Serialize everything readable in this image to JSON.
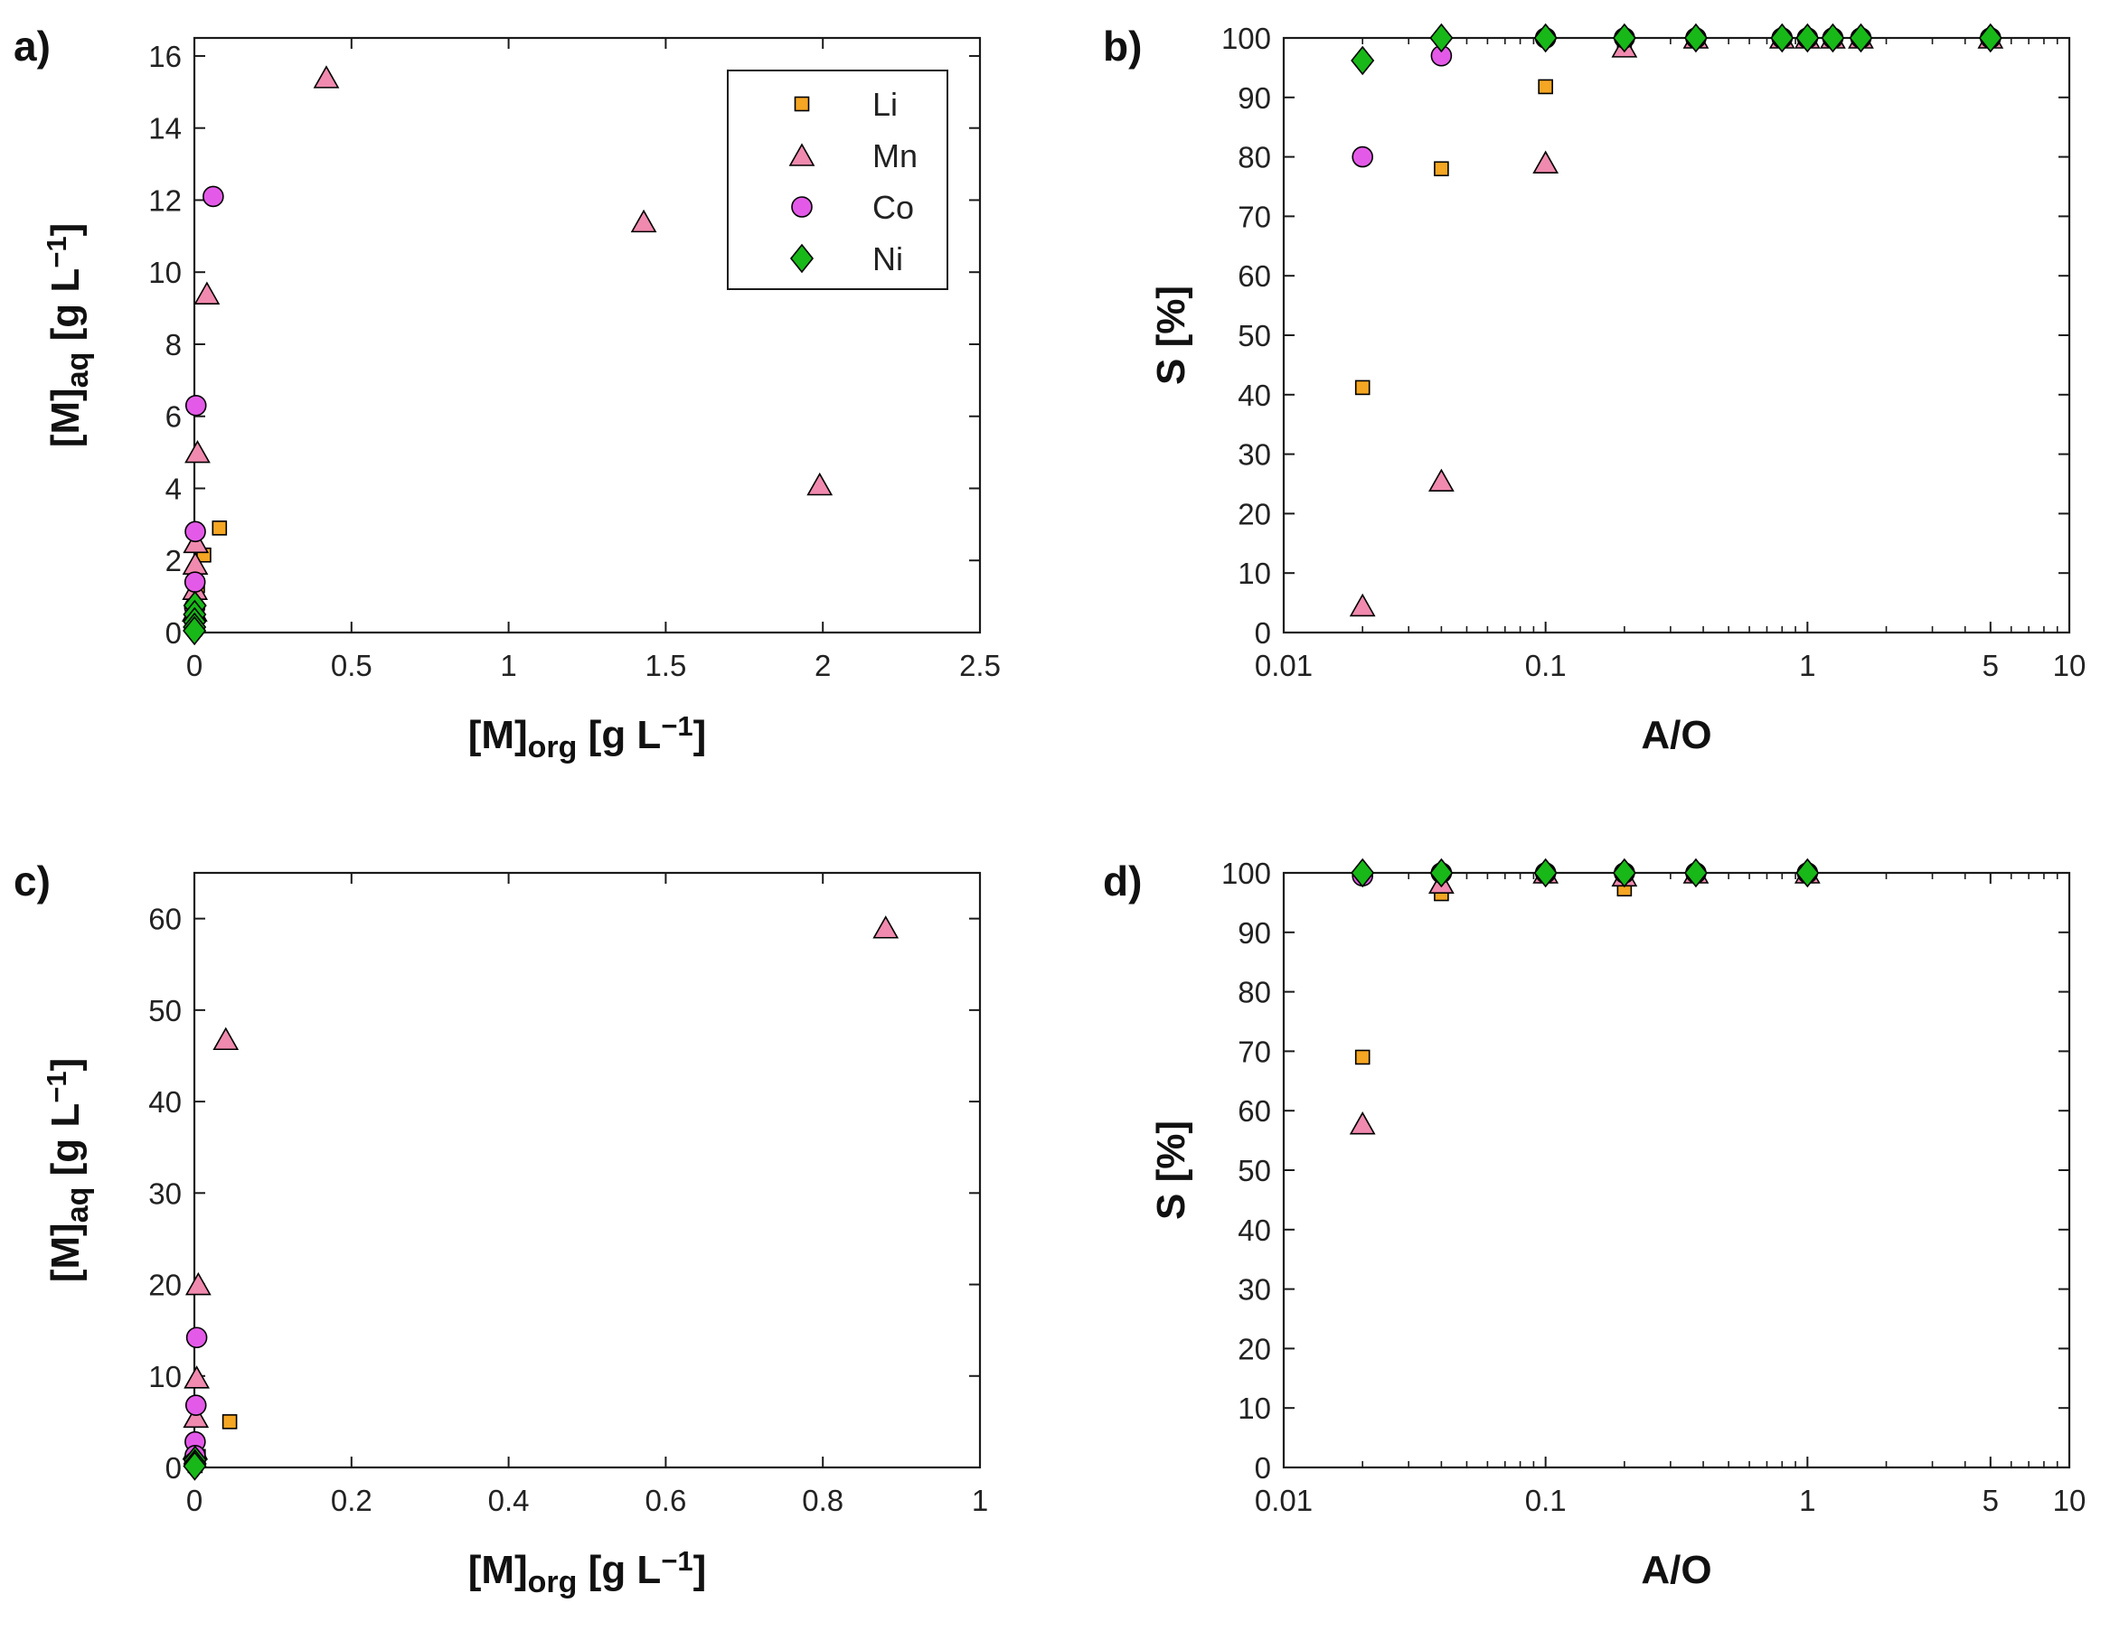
{
  "colors": {
    "Li": "#F5A623",
    "Mn": "#F08AAE",
    "Co": "#E45AE8",
    "Ni": "#18B818",
    "axis": "#1a1a1a"
  },
  "legend": [
    "Li",
    "Mn",
    "Co",
    "Ni"
  ],
  "chart_data": [
    {
      "id": "a",
      "panel_label": "a)",
      "type": "scatter",
      "xlabel": {
        "base": "[M]",
        "sub": "org",
        "unit_pre": " [g L",
        "sup": "−1",
        "unit_post": "]"
      },
      "ylabel": {
        "base": "[M]",
        "sub": "aq",
        "unit_pre": " [g L",
        "sup": "−1",
        "unit_post": "]"
      },
      "xscale": "linear",
      "xlim": [
        0,
        2.5
      ],
      "ylim": [
        0,
        16.5
      ],
      "xticks": [
        0,
        0.5,
        1,
        1.5,
        2,
        2.5
      ],
      "xtick_labels": [
        "0",
        "0.5",
        "1",
        "1.5",
        "2",
        "2.5"
      ],
      "yticks": [
        0,
        2,
        4,
        6,
        8,
        10,
        12,
        14,
        16
      ],
      "ytick_labels": [
        "0",
        "2",
        "4",
        "6",
        "8",
        "10",
        "12",
        "14",
        "16"
      ],
      "legend_position": "top-right",
      "series": [
        {
          "name": "Li",
          "marker": "square",
          "points": [
            [
              0.08,
              2.9
            ],
            [
              0.03,
              2.15
            ],
            [
              0.01,
              1.3
            ],
            [
              0.005,
              0.6
            ],
            [
              0.002,
              0.3
            ],
            [
              0.001,
              0.1
            ]
          ]
        },
        {
          "name": "Mn",
          "marker": "triangle",
          "points": [
            [
              0.42,
              15.4
            ],
            [
              1.43,
              11.4
            ],
            [
              1.99,
              4.1
            ],
            [
              0.04,
              9.4
            ],
            [
              0.01,
              5.0
            ],
            [
              0.005,
              2.5
            ],
            [
              0.003,
              1.9
            ],
            [
              0.002,
              1.2
            ],
            [
              0.001,
              0.6
            ]
          ]
        },
        {
          "name": "Co",
          "marker": "circle",
          "points": [
            [
              0.06,
              12.1
            ],
            [
              0.005,
              6.3
            ],
            [
              0.003,
              2.8
            ],
            [
              0.002,
              1.4
            ],
            [
              0.001,
              0.7
            ],
            [
              0.0005,
              0.35
            ]
          ]
        },
        {
          "name": "Ni",
          "marker": "diamond",
          "points": [
            [
              0.002,
              0.75
            ],
            [
              0.001,
              0.5
            ],
            [
              0.0008,
              0.3
            ],
            [
              0.0005,
              0.15
            ],
            [
              0.0003,
              0.05
            ]
          ]
        }
      ]
    },
    {
      "id": "b",
      "panel_label": "b)",
      "type": "scatter",
      "xlabel": {
        "base": "A/O"
      },
      "ylabel": {
        "base": "S [%]"
      },
      "xscale": "log",
      "xlim": [
        0.01,
        10
      ],
      "ylim": [
        0,
        100
      ],
      "xticks": [
        0.01,
        0.1,
        1,
        5,
        10
      ],
      "xtick_labels": [
        "0.01",
        "0.1",
        "1",
        "5",
        "10"
      ],
      "yticks": [
        0,
        10,
        20,
        30,
        40,
        50,
        60,
        70,
        80,
        90,
        100
      ],
      "ytick_labels": [
        "0",
        "10",
        "20",
        "30",
        "40",
        "50",
        "60",
        "70",
        "80",
        "90",
        "100"
      ],
      "series": [
        {
          "name": "Li",
          "marker": "square",
          "points": [
            [
              0.02,
              41.2
            ],
            [
              0.04,
              78.0
            ],
            [
              0.1,
              91.8
            ],
            [
              0.2,
              99.0
            ],
            [
              0.375,
              100
            ],
            [
              0.8,
              100
            ],
            [
              1,
              100
            ],
            [
              1.25,
              100
            ],
            [
              1.6,
              100
            ],
            [
              5,
              100
            ]
          ]
        },
        {
          "name": "Mn",
          "marker": "triangle",
          "points": [
            [
              0.02,
              4.5
            ],
            [
              0.04,
              25.5
            ],
            [
              0.1,
              79.0
            ],
            [
              0.2,
              98.5
            ],
            [
              0.375,
              100
            ],
            [
              0.8,
              100
            ],
            [
              1,
              100
            ],
            [
              1.25,
              100
            ],
            [
              1.6,
              100
            ],
            [
              5,
              100
            ]
          ]
        },
        {
          "name": "Co",
          "marker": "circle",
          "points": [
            [
              0.02,
              80.0
            ],
            [
              0.04,
              97.0
            ],
            [
              0.1,
              100
            ],
            [
              0.2,
              100
            ],
            [
              0.375,
              100
            ],
            [
              0.8,
              100
            ],
            [
              1,
              100
            ],
            [
              1.25,
              100
            ],
            [
              1.6,
              100
            ],
            [
              5,
              100
            ]
          ]
        },
        {
          "name": "Ni",
          "marker": "diamond",
          "points": [
            [
              0.02,
              96.2
            ],
            [
              0.04,
              100
            ],
            [
              0.1,
              100
            ],
            [
              0.2,
              100
            ],
            [
              0.375,
              100
            ],
            [
              0.8,
              100
            ],
            [
              1,
              100
            ],
            [
              1.25,
              100
            ],
            [
              1.6,
              100
            ],
            [
              5,
              100
            ]
          ]
        }
      ]
    },
    {
      "id": "c",
      "panel_label": "c)",
      "type": "scatter",
      "xlabel": {
        "base": "[M]",
        "sub": "org",
        "unit_pre": " [g L",
        "sup": "−1",
        "unit_post": "]"
      },
      "ylabel": {
        "base": "[M]",
        "sub": "aq",
        "unit_pre": " [g L",
        "sup": "−1",
        "unit_post": "]"
      },
      "xscale": "linear",
      "xlim": [
        0,
        1
      ],
      "ylim": [
        0,
        65
      ],
      "xticks": [
        0,
        0.2,
        0.4,
        0.6,
        0.8,
        1
      ],
      "xtick_labels": [
        "0",
        "0.2",
        "0.4",
        "0.6",
        "0.8",
        "1"
      ],
      "yticks": [
        0,
        10,
        20,
        30,
        40,
        50,
        60
      ],
      "ytick_labels": [
        "0",
        "10",
        "20",
        "30",
        "40",
        "50",
        "60"
      ],
      "series": [
        {
          "name": "Li",
          "marker": "square",
          "points": [
            [
              0.045,
              5.0
            ],
            [
              0.005,
              1.2
            ],
            [
              0.002,
              0.5
            ],
            [
              0.001,
              0.2
            ]
          ]
        },
        {
          "name": "Mn",
          "marker": "triangle",
          "points": [
            [
              0.88,
              59.0
            ],
            [
              0.04,
              46.8
            ],
            [
              0.005,
              20.0
            ],
            [
              0.003,
              9.8
            ],
            [
              0.002,
              5.5
            ],
            [
              0.001,
              2.0
            ]
          ]
        },
        {
          "name": "Co",
          "marker": "circle",
          "points": [
            [
              0.003,
              14.2
            ],
            [
              0.002,
              6.8
            ],
            [
              0.001,
              2.8
            ],
            [
              0.001,
              1.3
            ],
            [
              0.0005,
              0.6
            ]
          ]
        },
        {
          "name": "Ni",
          "marker": "diamond",
          "points": [
            [
              0.001,
              0.8
            ],
            [
              0.0008,
              0.4
            ],
            [
              0.0005,
              0.15
            ]
          ]
        }
      ]
    },
    {
      "id": "d",
      "panel_label": "d)",
      "type": "scatter",
      "xlabel": {
        "base": "A/O"
      },
      "ylabel": {
        "base": "S [%]"
      },
      "xscale": "log",
      "xlim": [
        0.01,
        10
      ],
      "ylim": [
        0,
        100
      ],
      "xticks": [
        0.01,
        0.1,
        1,
        5,
        10
      ],
      "xtick_labels": [
        "0.01",
        "0.1",
        "1",
        "5",
        "10"
      ],
      "yticks": [
        0,
        10,
        20,
        30,
        40,
        50,
        60,
        70,
        80,
        90,
        100
      ],
      "ytick_labels": [
        "0",
        "10",
        "20",
        "30",
        "40",
        "50",
        "60",
        "70",
        "80",
        "90",
        "100"
      ],
      "series": [
        {
          "name": "Li",
          "marker": "square",
          "points": [
            [
              0.02,
              69.0
            ],
            [
              0.04,
              96.5
            ],
            [
              0.1,
              99.5
            ],
            [
              0.2,
              97.3
            ],
            [
              0.375,
              99.8
            ],
            [
              1,
              99.5
            ]
          ]
        },
        {
          "name": "Mn",
          "marker": "triangle",
          "points": [
            [
              0.02,
              57.8
            ],
            [
              0.04,
              98.3
            ],
            [
              0.1,
              100
            ],
            [
              0.2,
              99.5
            ],
            [
              0.375,
              100
            ],
            [
              1,
              100
            ]
          ]
        },
        {
          "name": "Co",
          "marker": "circle",
          "points": [
            [
              0.02,
              99.5
            ],
            [
              0.04,
              100
            ],
            [
              0.1,
              100
            ],
            [
              0.2,
              100
            ],
            [
              0.375,
              100
            ],
            [
              1,
              100
            ]
          ]
        },
        {
          "name": "Ni",
          "marker": "diamond",
          "points": [
            [
              0.02,
              100
            ],
            [
              0.04,
              100
            ],
            [
              0.1,
              100
            ],
            [
              0.2,
              100
            ],
            [
              0.375,
              100
            ],
            [
              1,
              100
            ]
          ]
        }
      ]
    }
  ]
}
